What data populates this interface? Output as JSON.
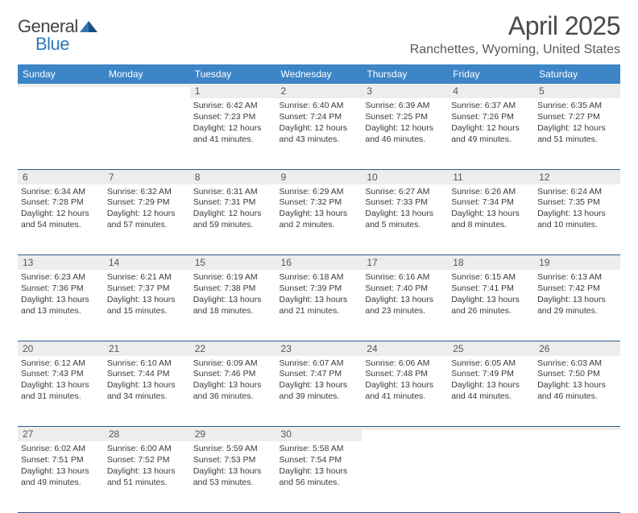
{
  "logo": {
    "word1": "General",
    "word2": "Blue"
  },
  "title": "April 2025",
  "location": "Ranchettes, Wyoming, United States",
  "colors": {
    "header_bg": "#3d85c6",
    "header_fg": "#ffffff",
    "daynum_bg": "#ededed",
    "rule": "#2a5a8a",
    "text": "#3a3a3a",
    "logo_blue": "#2f78b7"
  },
  "fonts": {
    "title_size": 32,
    "location_size": 16,
    "dayhdr_size": 12,
    "body_size": 10.5
  },
  "day_headers": [
    "Sunday",
    "Monday",
    "Tuesday",
    "Wednesday",
    "Thursday",
    "Friday",
    "Saturday"
  ],
  "weeks": [
    [
      {
        "n": "",
        "sunrise": "",
        "sunset": "",
        "daylight": ""
      },
      {
        "n": "",
        "sunrise": "",
        "sunset": "",
        "daylight": ""
      },
      {
        "n": "1",
        "sunrise": "6:42 AM",
        "sunset": "7:23 PM",
        "daylight": "12 hours and 41 minutes."
      },
      {
        "n": "2",
        "sunrise": "6:40 AM",
        "sunset": "7:24 PM",
        "daylight": "12 hours and 43 minutes."
      },
      {
        "n": "3",
        "sunrise": "6:39 AM",
        "sunset": "7:25 PM",
        "daylight": "12 hours and 46 minutes."
      },
      {
        "n": "4",
        "sunrise": "6:37 AM",
        "sunset": "7:26 PM",
        "daylight": "12 hours and 49 minutes."
      },
      {
        "n": "5",
        "sunrise": "6:35 AM",
        "sunset": "7:27 PM",
        "daylight": "12 hours and 51 minutes."
      }
    ],
    [
      {
        "n": "6",
        "sunrise": "6:34 AM",
        "sunset": "7:28 PM",
        "daylight": "12 hours and 54 minutes."
      },
      {
        "n": "7",
        "sunrise": "6:32 AM",
        "sunset": "7:29 PM",
        "daylight": "12 hours and 57 minutes."
      },
      {
        "n": "8",
        "sunrise": "6:31 AM",
        "sunset": "7:31 PM",
        "daylight": "12 hours and 59 minutes."
      },
      {
        "n": "9",
        "sunrise": "6:29 AM",
        "sunset": "7:32 PM",
        "daylight": "13 hours and 2 minutes."
      },
      {
        "n": "10",
        "sunrise": "6:27 AM",
        "sunset": "7:33 PM",
        "daylight": "13 hours and 5 minutes."
      },
      {
        "n": "11",
        "sunrise": "6:26 AM",
        "sunset": "7:34 PM",
        "daylight": "13 hours and 8 minutes."
      },
      {
        "n": "12",
        "sunrise": "6:24 AM",
        "sunset": "7:35 PM",
        "daylight": "13 hours and 10 minutes."
      }
    ],
    [
      {
        "n": "13",
        "sunrise": "6:23 AM",
        "sunset": "7:36 PM",
        "daylight": "13 hours and 13 minutes."
      },
      {
        "n": "14",
        "sunrise": "6:21 AM",
        "sunset": "7:37 PM",
        "daylight": "13 hours and 15 minutes."
      },
      {
        "n": "15",
        "sunrise": "6:19 AM",
        "sunset": "7:38 PM",
        "daylight": "13 hours and 18 minutes."
      },
      {
        "n": "16",
        "sunrise": "6:18 AM",
        "sunset": "7:39 PM",
        "daylight": "13 hours and 21 minutes."
      },
      {
        "n": "17",
        "sunrise": "6:16 AM",
        "sunset": "7:40 PM",
        "daylight": "13 hours and 23 minutes."
      },
      {
        "n": "18",
        "sunrise": "6:15 AM",
        "sunset": "7:41 PM",
        "daylight": "13 hours and 26 minutes."
      },
      {
        "n": "19",
        "sunrise": "6:13 AM",
        "sunset": "7:42 PM",
        "daylight": "13 hours and 29 minutes."
      }
    ],
    [
      {
        "n": "20",
        "sunrise": "6:12 AM",
        "sunset": "7:43 PM",
        "daylight": "13 hours and 31 minutes."
      },
      {
        "n": "21",
        "sunrise": "6:10 AM",
        "sunset": "7:44 PM",
        "daylight": "13 hours and 34 minutes."
      },
      {
        "n": "22",
        "sunrise": "6:09 AM",
        "sunset": "7:46 PM",
        "daylight": "13 hours and 36 minutes."
      },
      {
        "n": "23",
        "sunrise": "6:07 AM",
        "sunset": "7:47 PM",
        "daylight": "13 hours and 39 minutes."
      },
      {
        "n": "24",
        "sunrise": "6:06 AM",
        "sunset": "7:48 PM",
        "daylight": "13 hours and 41 minutes."
      },
      {
        "n": "25",
        "sunrise": "6:05 AM",
        "sunset": "7:49 PM",
        "daylight": "13 hours and 44 minutes."
      },
      {
        "n": "26",
        "sunrise": "6:03 AM",
        "sunset": "7:50 PM",
        "daylight": "13 hours and 46 minutes."
      }
    ],
    [
      {
        "n": "27",
        "sunrise": "6:02 AM",
        "sunset": "7:51 PM",
        "daylight": "13 hours and 49 minutes."
      },
      {
        "n": "28",
        "sunrise": "6:00 AM",
        "sunset": "7:52 PM",
        "daylight": "13 hours and 51 minutes."
      },
      {
        "n": "29",
        "sunrise": "5:59 AM",
        "sunset": "7:53 PM",
        "daylight": "13 hours and 53 minutes."
      },
      {
        "n": "30",
        "sunrise": "5:58 AM",
        "sunset": "7:54 PM",
        "daylight": "13 hours and 56 minutes."
      },
      {
        "n": "",
        "sunrise": "",
        "sunset": "",
        "daylight": ""
      },
      {
        "n": "",
        "sunrise": "",
        "sunset": "",
        "daylight": ""
      },
      {
        "n": "",
        "sunrise": "",
        "sunset": "",
        "daylight": ""
      }
    ]
  ],
  "labels": {
    "sunrise": "Sunrise:",
    "sunset": "Sunset:",
    "daylight": "Daylight:"
  }
}
